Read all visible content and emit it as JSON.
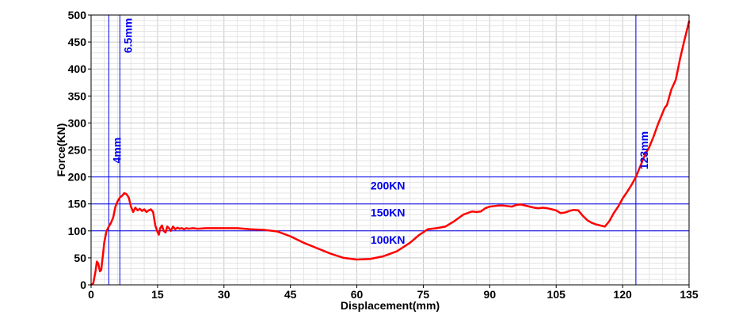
{
  "chart_data": {
    "type": "line",
    "title": "",
    "xlabel": "Displacement(mm)",
    "ylabel": "Force(KN)",
    "xlim": [
      0,
      135
    ],
    "ylim": [
      0,
      500
    ],
    "x_ticks": [
      0,
      15,
      30,
      45,
      60,
      75,
      90,
      105,
      120,
      135
    ],
    "y_ticks": [
      0,
      50,
      100,
      150,
      200,
      250,
      300,
      350,
      400,
      450,
      500
    ],
    "grid": true,
    "legend": "none",
    "colors": {
      "series": "#ff0000",
      "reference": "#0000ee",
      "grid": "#c8c8c8"
    },
    "series": [
      {
        "x": [
          0.0,
          0.5,
          1.0,
          1.3,
          1.6,
          2.0,
          2.3,
          2.6,
          3.0,
          3.5,
          4.0,
          4.5,
          5.0,
          5.5,
          6.0,
          6.5,
          7.0,
          7.5,
          8.0,
          8.5,
          9.0,
          9.5,
          10.0,
          10.5,
          11.0,
          11.5,
          12.0,
          12.5,
          13.0,
          13.5,
          14.0,
          14.5,
          15.0,
          15.3,
          15.6,
          16.0,
          16.4,
          16.8,
          17.2,
          17.6,
          18.0,
          18.5,
          19.0,
          19.5,
          20.0,
          20.5,
          21.0,
          21.5,
          22.0,
          23.0,
          24.0,
          26.0,
          28.0,
          30.0,
          33.0,
          36.0,
          39.0,
          42.0,
          45.0,
          48.0,
          51.0,
          54.0,
          57.0,
          60.0,
          63.0,
          66.0,
          69.0,
          72.0,
          74.0,
          76.0,
          78.0,
          80.0,
          82.0,
          84.0,
          86.0,
          87.0,
          88.0,
          89.0,
          90.0,
          91.0,
          92.0,
          93.0,
          94.0,
          95.0,
          96.0,
          97.0,
          98.0,
          99.0,
          100.0,
          101.0,
          102.0,
          103.0,
          104.0,
          105.0,
          106.0,
          107.0,
          108.0,
          109.0,
          110.0,
          111.0,
          112.0,
          113.0,
          114.0,
          115.0,
          116.0,
          117.0,
          118.0,
          119.0,
          120.0,
          121.0,
          122.0,
          123.0,
          124.0,
          125.0,
          126.0,
          127.0,
          128.0,
          129.0,
          129.5,
          130.0,
          131.0,
          132.0,
          133.0,
          134.0,
          135.0
        ],
        "y": [
          0,
          3,
          25,
          43,
          40,
          25,
          28,
          50,
          80,
          100,
          108,
          115,
          125,
          145,
          155,
          162,
          165,
          170,
          168,
          162,
          145,
          135,
          143,
          138,
          141,
          137,
          140,
          135,
          138,
          140,
          135,
          110,
          98,
          93,
          105,
          110,
          100,
          97,
          108,
          105,
          100,
          108,
          103,
          106,
          104,
          105,
          103,
          105,
          104,
          105,
          104,
          105,
          105,
          105,
          105,
          103,
          102,
          99,
          90,
          78,
          68,
          58,
          50,
          47,
          48,
          53,
          62,
          78,
          92,
          103,
          105,
          108,
          118,
          130,
          136,
          135,
          136,
          142,
          145,
          146,
          147,
          147,
          146,
          145,
          148,
          149,
          147,
          145,
          143,
          142,
          143,
          142,
          140,
          138,
          133,
          134,
          137,
          139,
          138,
          128,
          120,
          115,
          112,
          110,
          108,
          118,
          133,
          145,
          160,
          172,
          185,
          200,
          220,
          240,
          255,
          275,
          298,
          318,
          328,
          333,
          362,
          380,
          420,
          455,
          488
        ]
      }
    ],
    "reference_lines": [
      {
        "axis": "x",
        "value": 4,
        "label": "4mm"
      },
      {
        "axis": "x",
        "value": 6.5,
        "label": "6.5mm"
      },
      {
        "axis": "x",
        "value": 123,
        "label": "123mm"
      },
      {
        "axis": "y",
        "value": 200,
        "label": "200KN"
      },
      {
        "axis": "y",
        "value": 150,
        "label": "150KN"
      },
      {
        "axis": "y",
        "value": 100,
        "label": "100KN"
      }
    ]
  }
}
